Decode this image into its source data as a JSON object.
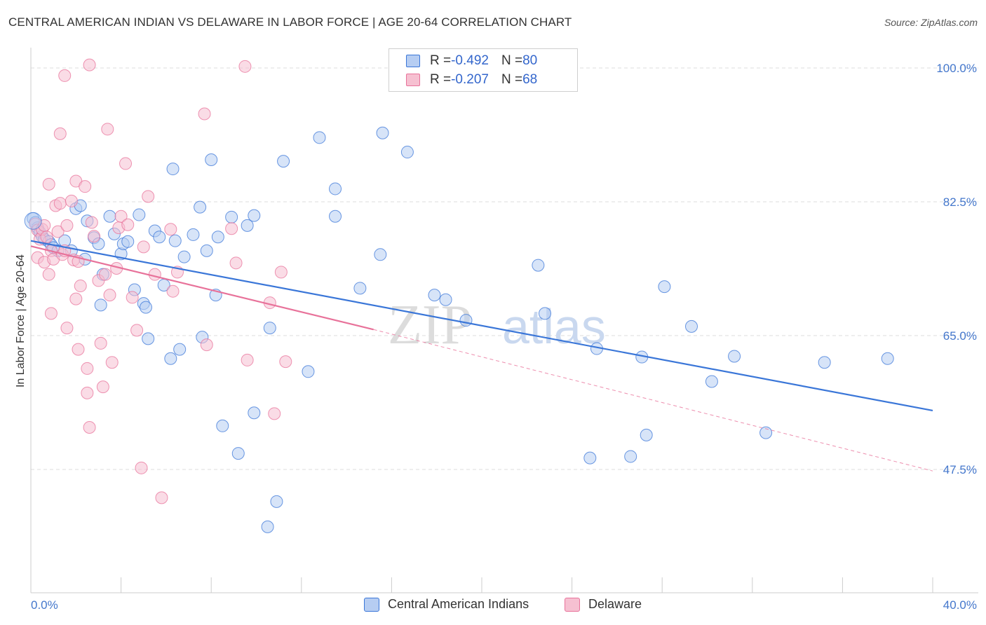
{
  "title": "CENTRAL AMERICAN INDIAN VS DELAWARE IN LABOR FORCE | AGE 20-64 CORRELATION CHART",
  "source": "Source: ZipAtlas.com",
  "watermark": {
    "zip": "ZIP",
    "atlas": "atlas"
  },
  "colors": {
    "blue": "#3a76d8",
    "blue_fill": "#b6cdf2",
    "pink": "#e8729a",
    "pink_fill": "#f6c0d1",
    "grid": "#dddddd",
    "axis_text": "#4477cc"
  },
  "legend": {
    "rows": [
      {
        "r_label": "R = ",
        "r_value": "-0.492",
        "n_label": "N = ",
        "n_value": "80"
      },
      {
        "r_label": "R = ",
        "r_value": "-0.207",
        "n_label": "N = ",
        "n_value": "68"
      }
    ]
  },
  "bottom_legend": [
    "Central American Indians",
    "Delaware"
  ],
  "chart_data": {
    "type": "scatter",
    "title": "CENTRAL AMERICAN INDIAN VS DELAWARE IN LABOR FORCE | AGE 20-64 CORRELATION CHART",
    "xlabel": "",
    "ylabel": "In Labor Force | Age 20-64",
    "xlim": [
      0,
      40
    ],
    "ylim": [
      30,
      102
    ],
    "x_tick_labels": [
      "0.0%",
      "40.0%"
    ],
    "y_ticks": [
      {
        "value": 100,
        "label": "100.0%"
      },
      {
        "value": 82.5,
        "label": "82.5%"
      },
      {
        "value": 65,
        "label": "65.0%"
      },
      {
        "value": 47.5,
        "label": "47.5%"
      }
    ],
    "grid": true,
    "legend_position": "top-center",
    "series": [
      {
        "name": "Central American Indians",
        "color": "#3a76d8",
        "r": -0.492,
        "n": 80,
        "trend": {
          "x0": 0,
          "y0": 77.4,
          "x1": 40,
          "y1": 55.2,
          "style": "solid"
        },
        "points": [
          [
            0.1,
            80.3
          ],
          [
            0.2,
            79.8
          ],
          [
            0.3,
            79.1
          ],
          [
            0.4,
            78.5
          ],
          [
            0.5,
            78.0
          ],
          [
            0.6,
            77.6
          ],
          [
            0.8,
            77.3
          ],
          [
            0.9,
            76.9
          ],
          [
            1.0,
            76.5
          ],
          [
            1.2,
            76.1
          ],
          [
            1.5,
            77.4
          ],
          [
            1.8,
            76.1
          ],
          [
            2.0,
            81.6
          ],
          [
            2.2,
            82.0
          ],
          [
            2.5,
            80.0
          ],
          [
            2.4,
            75.0
          ],
          [
            2.8,
            77.8
          ],
          [
            3.0,
            77.0
          ],
          [
            3.2,
            73.0
          ],
          [
            3.5,
            80.6
          ],
          [
            3.1,
            69.0
          ],
          [
            3.7,
            78.3
          ],
          [
            4.0,
            75.7
          ],
          [
            4.1,
            77.0
          ],
          [
            4.3,
            77.3
          ],
          [
            4.8,
            80.8
          ],
          [
            4.6,
            71.0
          ],
          [
            5.0,
            69.2
          ],
          [
            5.1,
            68.7
          ],
          [
            5.2,
            64.6
          ],
          [
            5.5,
            78.7
          ],
          [
            5.7,
            77.9
          ],
          [
            5.9,
            71.6
          ],
          [
            6.2,
            62.0
          ],
          [
            6.4,
            77.4
          ],
          [
            6.6,
            63.2
          ],
          [
            6.8,
            75.3
          ],
          [
            6.3,
            86.8
          ],
          [
            7.2,
            78.2
          ],
          [
            7.5,
            81.8
          ],
          [
            7.6,
            64.8
          ],
          [
            7.8,
            76.1
          ],
          [
            8.0,
            88.0
          ],
          [
            8.3,
            77.9
          ],
          [
            8.2,
            70.3
          ],
          [
            8.5,
            53.2
          ],
          [
            8.9,
            80.5
          ],
          [
            9.2,
            49.6
          ],
          [
            9.6,
            79.4
          ],
          [
            9.9,
            80.7
          ],
          [
            9.9,
            54.9
          ],
          [
            10.5,
            40.0
          ],
          [
            10.6,
            66.0
          ],
          [
            10.9,
            43.3
          ],
          [
            11.2,
            87.8
          ],
          [
            12.3,
            60.3
          ],
          [
            12.8,
            90.9
          ],
          [
            13.5,
            84.2
          ],
          [
            13.5,
            80.6
          ],
          [
            14.6,
            71.2
          ],
          [
            15.5,
            75.6
          ],
          [
            15.6,
            91.5
          ],
          [
            16.7,
            89.0
          ],
          [
            17.9,
            70.3
          ],
          [
            18.4,
            69.7
          ],
          [
            19.3,
            67.0
          ],
          [
            22.5,
            74.2
          ],
          [
            22.8,
            67.9
          ],
          [
            24.8,
            49.0
          ],
          [
            25.1,
            63.3
          ],
          [
            26.6,
            49.2
          ],
          [
            27.3,
            52.0
          ],
          [
            27.1,
            62.2
          ],
          [
            28.1,
            71.4
          ],
          [
            29.3,
            66.2
          ],
          [
            30.2,
            59.0
          ],
          [
            31.2,
            62.3
          ],
          [
            32.6,
            52.3
          ],
          [
            35.2,
            61.5
          ],
          [
            38.0,
            62.0
          ]
        ]
      },
      {
        "name": "Delaware",
        "color": "#e8729a",
        "r": -0.207,
        "n": 68,
        "trend": {
          "x0": 0,
          "y0": 76.7,
          "x1": 15.2,
          "y1": 65.8,
          "style": "solid",
          "dashed_to": {
            "x": 40,
            "y": 47.3
          }
        },
        "points": [
          [
            0.2,
            79.6
          ],
          [
            0.3,
            78.8
          ],
          [
            0.4,
            77.6
          ],
          [
            0.5,
            78.9
          ],
          [
            0.6,
            79.4
          ],
          [
            0.7,
            77.9
          ],
          [
            0.3,
            75.2
          ],
          [
            0.6,
            74.6
          ],
          [
            0.8,
            73.0
          ],
          [
            0.9,
            76.1
          ],
          [
            0.9,
            67.9
          ],
          [
            1.0,
            75.0
          ],
          [
            1.1,
            82.0
          ],
          [
            1.2,
            78.6
          ],
          [
            1.3,
            82.3
          ],
          [
            1.4,
            75.6
          ],
          [
            1.5,
            76.1
          ],
          [
            1.6,
            66.0
          ],
          [
            1.8,
            82.6
          ],
          [
            1.9,
            74.9
          ],
          [
            2.0,
            85.2
          ],
          [
            2.0,
            69.8
          ],
          [
            2.1,
            74.7
          ],
          [
            2.2,
            71.5
          ],
          [
            2.4,
            84.5
          ],
          [
            2.5,
            57.5
          ],
          [
            2.6,
            53.0
          ],
          [
            2.7,
            79.8
          ],
          [
            2.5,
            60.7
          ],
          [
            2.1,
            63.2
          ],
          [
            2.8,
            78.0
          ],
          [
            3.0,
            72.2
          ],
          [
            3.1,
            64.0
          ],
          [
            3.2,
            58.3
          ],
          [
            3.3,
            73.0
          ],
          [
            3.5,
            70.3
          ],
          [
            3.8,
            73.8
          ],
          [
            3.6,
            61.5
          ],
          [
            3.4,
            92.0
          ],
          [
            3.9,
            79.1
          ],
          [
            4.0,
            80.6
          ],
          [
            4.3,
            79.5
          ],
          [
            4.5,
            70.0
          ],
          [
            4.7,
            65.7
          ],
          [
            5.0,
            76.6
          ],
          [
            5.2,
            83.2
          ],
          [
            4.9,
            47.7
          ],
          [
            5.5,
            73.0
          ],
          [
            5.8,
            43.8
          ],
          [
            6.2,
            78.9
          ],
          [
            6.3,
            70.8
          ],
          [
            6.5,
            73.3
          ],
          [
            7.8,
            63.8
          ],
          [
            7.7,
            94.0
          ],
          [
            8.9,
            79.0
          ],
          [
            9.1,
            74.5
          ],
          [
            9.5,
            100.2
          ],
          [
            9.6,
            61.8
          ],
          [
            10.6,
            69.3
          ],
          [
            10.8,
            54.8
          ],
          [
            11.1,
            73.3
          ],
          [
            11.3,
            61.6
          ],
          [
            1.5,
            99.0
          ],
          [
            2.6,
            100.4
          ],
          [
            4.2,
            87.5
          ],
          [
            1.3,
            91.4
          ],
          [
            0.8,
            84.8
          ],
          [
            1.6,
            79.4
          ]
        ]
      }
    ]
  }
}
